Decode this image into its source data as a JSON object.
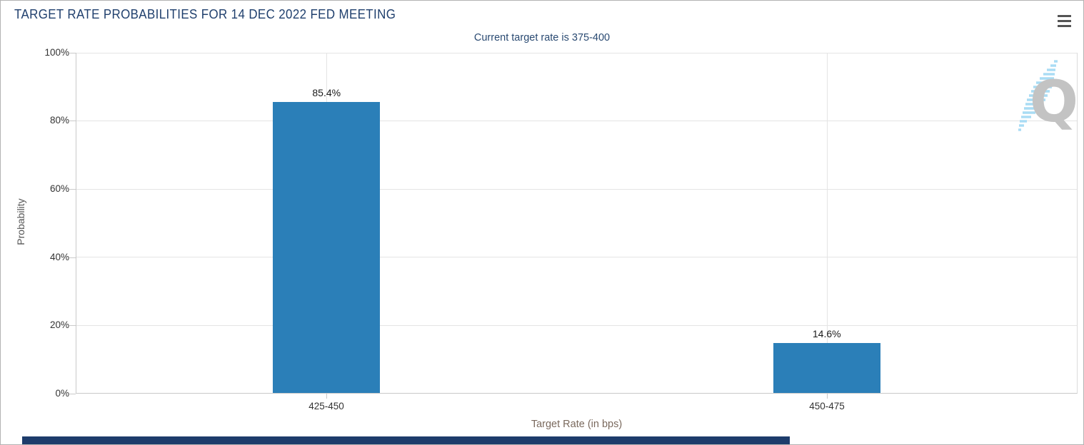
{
  "header": {
    "title": "TARGET RATE PROBABILITIES FOR 14 DEC 2022 FED MEETING"
  },
  "toolbar": {
    "menu_icon": "hamburger-menu-icon"
  },
  "chart_data": {
    "type": "bar",
    "title": "TARGET RATE PROBABILITIES FOR 14 DEC 2022 FED MEETING",
    "subtitle": "Current target rate is 375-400",
    "categories": [
      "425-450",
      "450-475"
    ],
    "values": [
      85.4,
      14.6
    ],
    "data_labels": [
      "85.4%",
      "14.6%"
    ],
    "xlabel": "Target Rate (in bps)",
    "ylabel": "Probability",
    "ylim": [
      0,
      100
    ],
    "ytick_labels": [
      "100%",
      "80%",
      "60%",
      "40%",
      "20%",
      "0%"
    ],
    "grid": true,
    "legend_position": "none",
    "bar_color": "#2b7fb8"
  },
  "watermark": {
    "letter": "Q"
  }
}
